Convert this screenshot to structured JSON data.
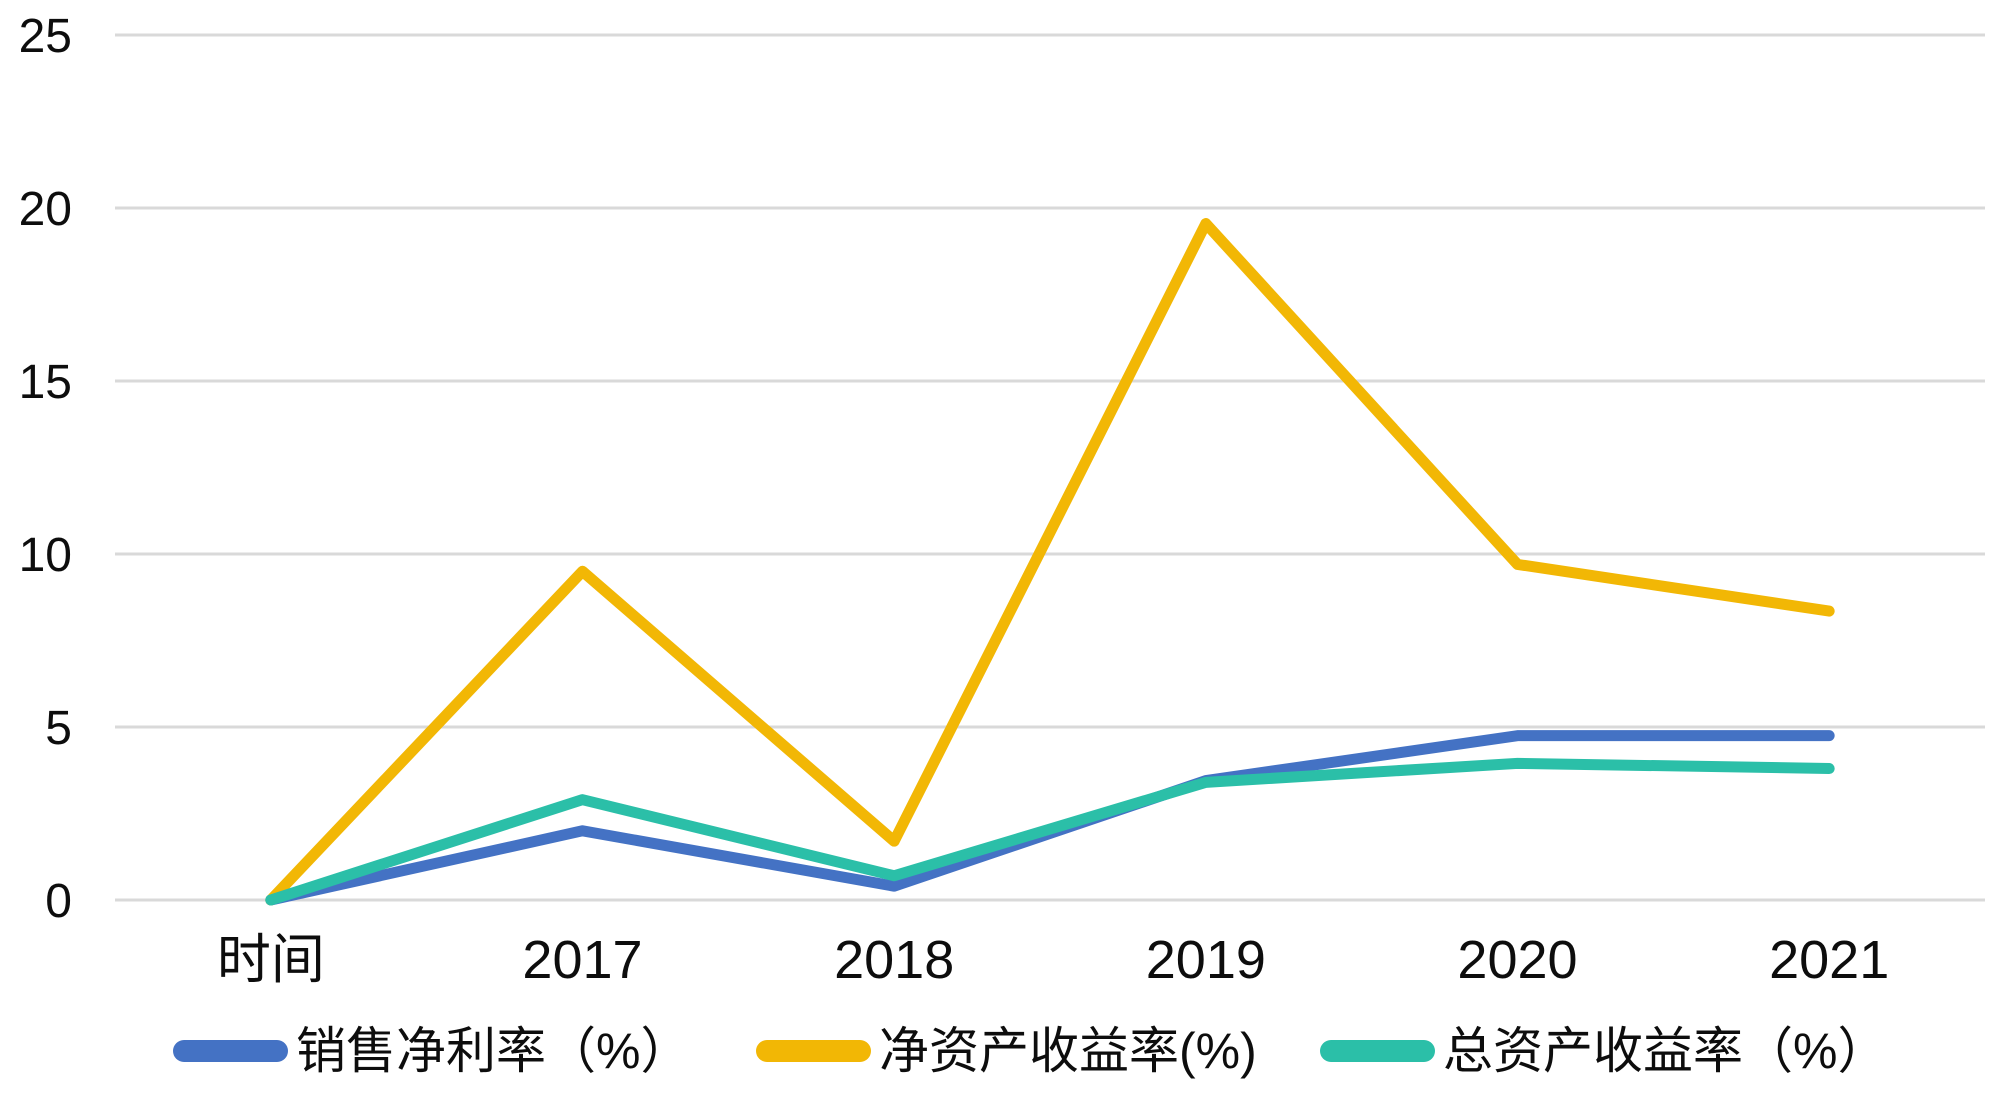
{
  "chart_data": {
    "type": "line",
    "categories": [
      "时间",
      "2017",
      "2018",
      "2019",
      "2020",
      "2021"
    ],
    "series": [
      {
        "id": "net-profit-margin",
        "name": "销售净利率（%）",
        "color": "#4472C4",
        "values": [
          0,
          2.0,
          0.4,
          3.45,
          4.75,
          4.75
        ]
      },
      {
        "id": "return-on-equity",
        "name": "净资产收益率(%)",
        "color": "#F2B705",
        "values": [
          0,
          9.5,
          1.7,
          19.55,
          9.7,
          8.35
        ]
      },
      {
        "id": "return-on-assets",
        "name": "总资产收益率（%）",
        "color": "#2BBFA8",
        "values": [
          0,
          2.9,
          0.7,
          3.4,
          3.95,
          3.8
        ]
      }
    ],
    "title": "",
    "xlabel": "",
    "ylabel": "",
    "ylim": [
      0,
      25
    ],
    "yticks": [
      0,
      5,
      10,
      15,
      20,
      25
    ],
    "grid": true,
    "legend_position": "bottom"
  },
  "style": {
    "background": "#FFFFFF",
    "gridline_color": "#D9D9D9",
    "axis_text_color": "#0D0D0D"
  }
}
